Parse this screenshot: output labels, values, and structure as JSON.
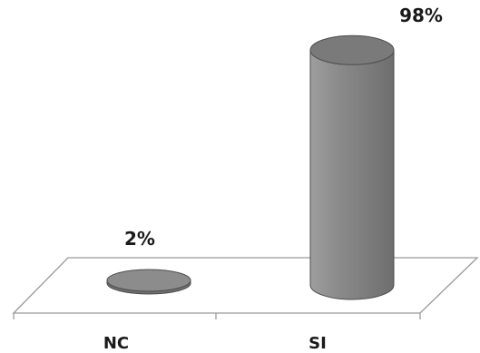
{
  "chart_data": {
    "type": "bar",
    "style": "3d-cylinder",
    "categories": [
      "NC",
      "SI"
    ],
    "values": [
      2,
      98
    ],
    "unit": "%",
    "data_labels": [
      "2%",
      "98%"
    ],
    "ylim": [
      0,
      100
    ],
    "grid": false,
    "legend": "none"
  },
  "colors": {
    "bar_fill": "#8c8c8c",
    "bar_top": "#7a7a7a",
    "bar_edge": "#4d4d4d",
    "floor_line": "#9a9a9a",
    "text": "#1a1a1a"
  }
}
